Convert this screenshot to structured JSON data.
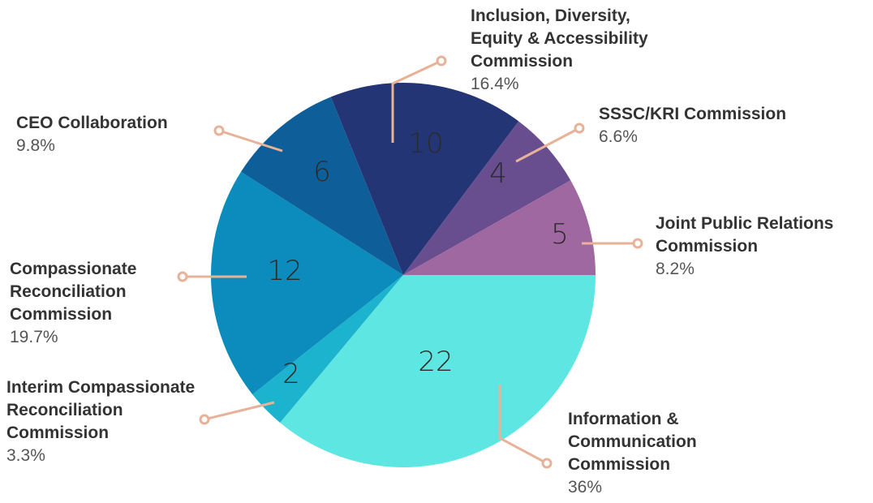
{
  "chart_data": {
    "type": "pie",
    "slices": [
      {
        "label": "Information & Communication Commission",
        "label_lines": [
          "Information &",
          "Communication",
          "Commission"
        ],
        "value": 22,
        "percent": "36%",
        "color": "#5ee6e2"
      },
      {
        "label": "Interim Compassionate Reconciliation Commission",
        "label_lines": [
          "Interim Compassionate",
          "Reconciliation",
          "Commission"
        ],
        "value": 2,
        "percent": "3.3%",
        "color": "#1cb3cf"
      },
      {
        "label": "Compassionate Reconciliation Commission",
        "label_lines": [
          "Compassionate",
          "Reconciliation",
          "Commission"
        ],
        "value": 12,
        "percent": "19.7%",
        "color": "#0b8cbc"
      },
      {
        "label": "CEO Collaboration",
        "label_lines": [
          "CEO Collaboration"
        ],
        "value": 6,
        "percent": "9.8%",
        "color": "#0e5f99"
      },
      {
        "label": "Inclusion, Diversity, Equity & Accessibility Commission",
        "label_lines": [
          "Inclusion, Diversity,",
          "Equity & Accessibility",
          "Commission"
        ],
        "value": 10,
        "percent": "16.4%",
        "color": "#233575"
      },
      {
        "label": "SSSC/KRI Commission",
        "label_lines": [
          "SSSC/KRI Commission"
        ],
        "value": 4,
        "percent": "6.6%",
        "color": "#684d8f"
      },
      {
        "label": "Joint Public Relations Commission",
        "label_lines": [
          "Joint Public Relations",
          "Commission"
        ],
        "value": 5,
        "percent": "8.2%",
        "color": "#a068a0"
      }
    ],
    "leader_color": "#e7b298"
  }
}
